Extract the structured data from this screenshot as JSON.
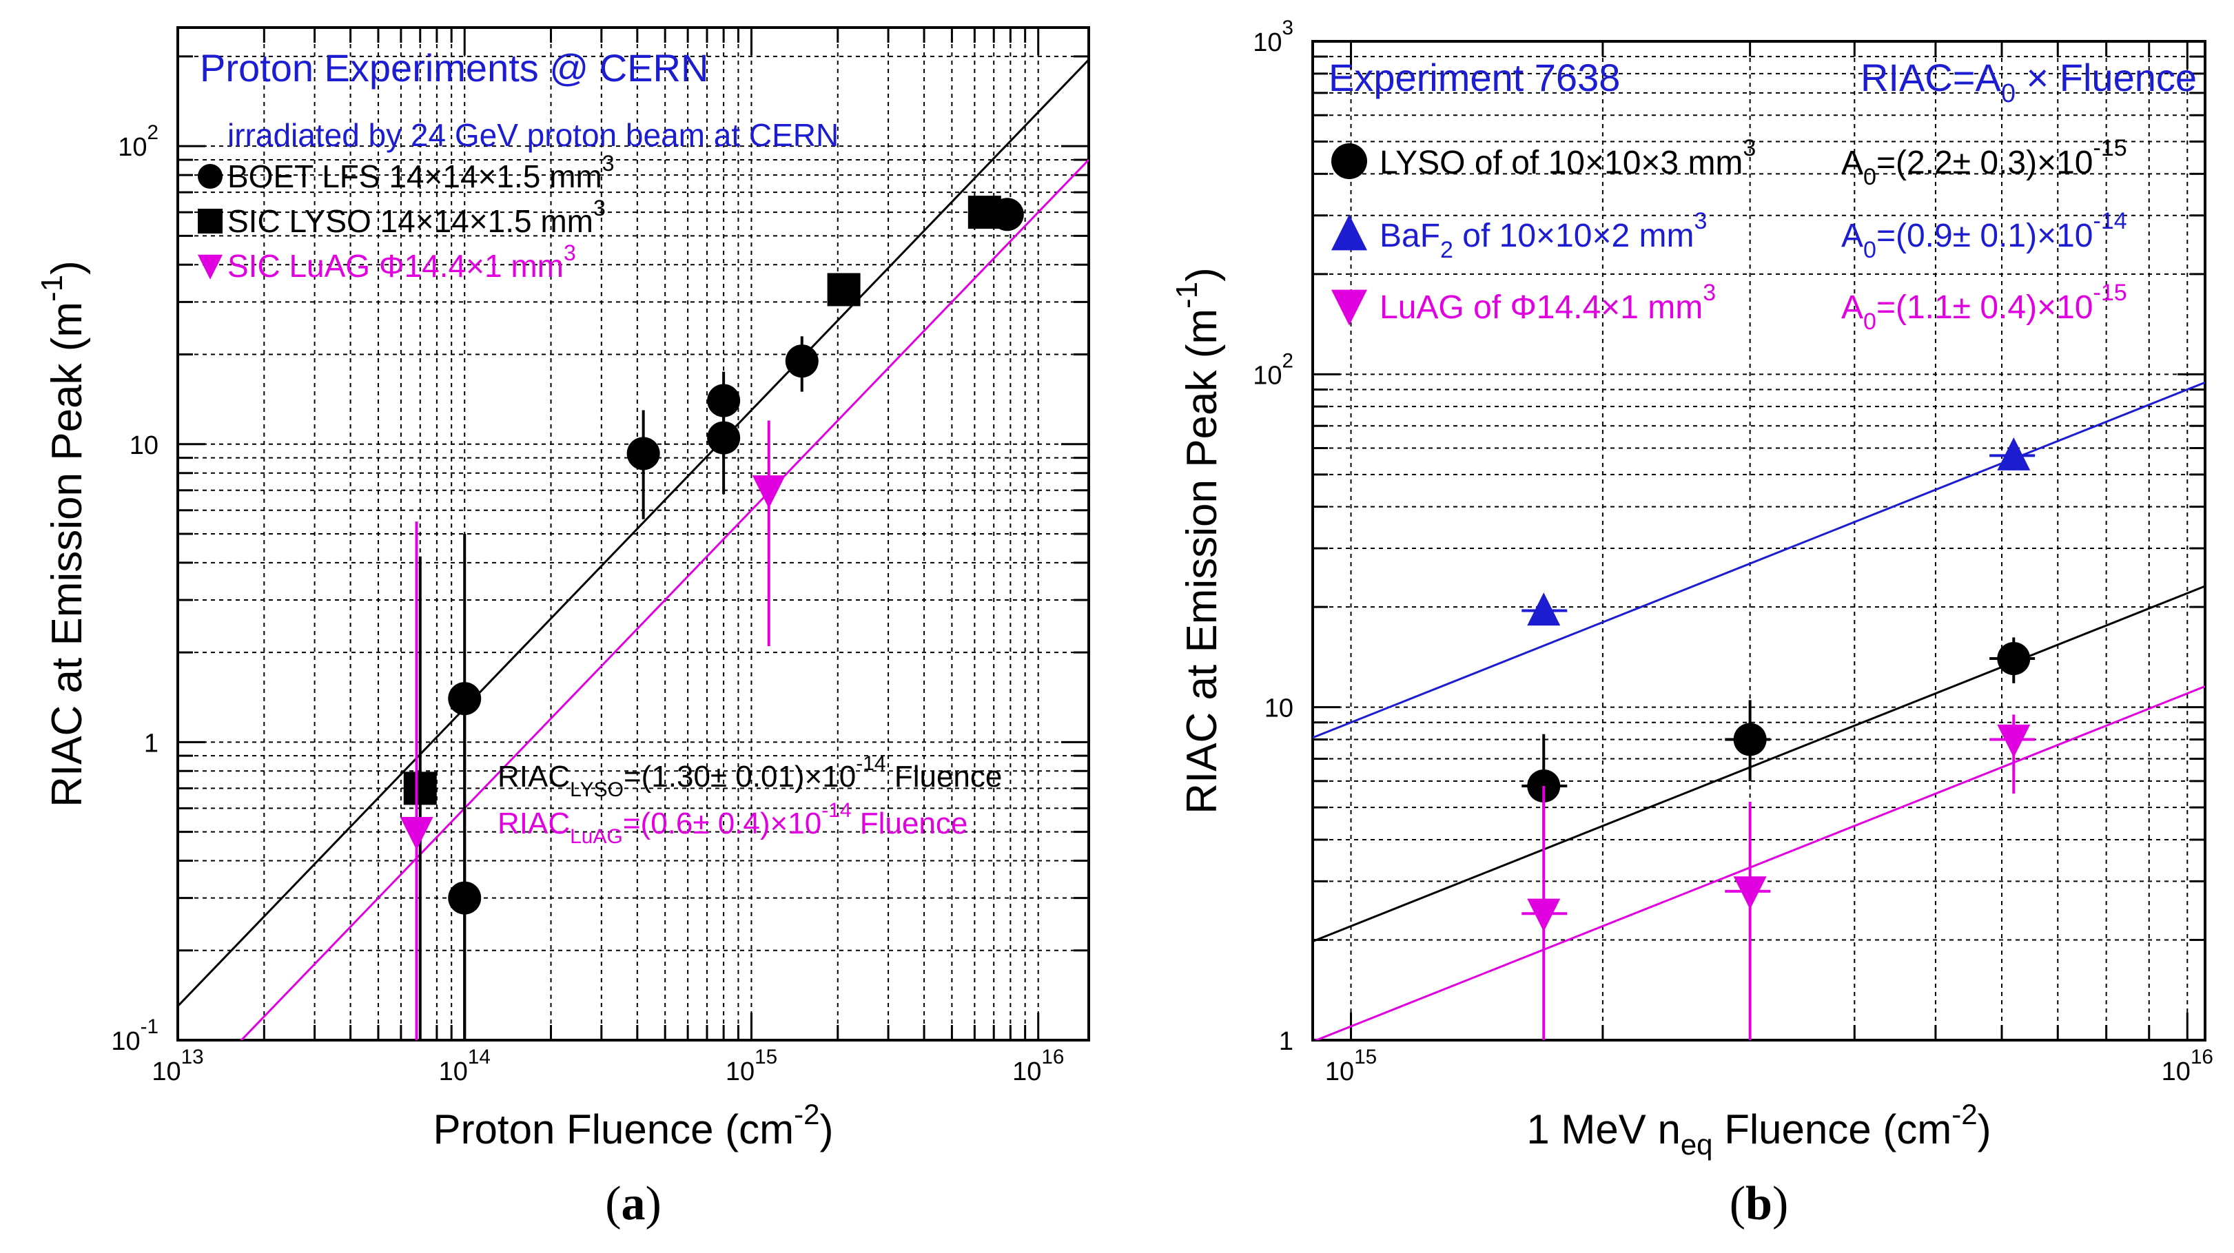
{
  "chart_data": [
    {
      "panel_id": "a",
      "panel_label": "a",
      "type": "scatter",
      "xscale": "log",
      "yscale": "log",
      "xlim": [
        10000000000000.0,
        1.5e+16
      ],
      "ylim": [
        0.1,
        250
      ],
      "xlabel": "Proton Fluence (cm",
      "xlabel_sup": "-2",
      "xlabel_close": ")",
      "ylabel": "RIAC at Emission Peak (m",
      "ylabel_sup": "-1",
      "ylabel_close": ")",
      "xticks": [
        {
          "value": 10000000000000.0,
          "base": "10",
          "exp": "13"
        },
        {
          "value": 100000000000000.0,
          "base": "10",
          "exp": "14"
        },
        {
          "value": 1000000000000000.0,
          "base": "10",
          "exp": "15"
        },
        {
          "value": 1e+16,
          "base": "10",
          "exp": "16"
        }
      ],
      "yticks": [
        {
          "value": 0.1,
          "base": "10",
          "exp": "-1"
        },
        {
          "value": 1,
          "base": "1",
          "exp": ""
        },
        {
          "value": 10,
          "base": "10",
          "exp": ""
        },
        {
          "value": 100,
          "base": "10",
          "exp": "2"
        }
      ],
      "header": {
        "title": "Proton Experiments @ CERN",
        "subtitle": "irradiated by 24 GeV proton beam at CERN"
      },
      "legend": [
        {
          "marker": "circle",
          "color": "#000000",
          "text": "BOET LFS  14×14×1.5 mm",
          "sup": "3"
        },
        {
          "marker": "square",
          "color": "#000000",
          "text": "SIC LYSO   14×14×1.5 mm",
          "sup": "3"
        },
        {
          "marker": "tri-down",
          "color": "#e000e0",
          "text": "SIC LuAG  Φ14.4×1 mm",
          "sup": "3"
        }
      ],
      "series": [
        {
          "name": "BOET LFS",
          "marker": "circle",
          "color": "#000000",
          "points": [
            {
              "x": 100000000000000.0,
              "y": 1.4,
              "ylo": 0.1,
              "yhi": 5.0
            },
            {
              "x": 100000000000000.0,
              "y": 0.3,
              "ylo": 0.1,
              "yhi": 1.4
            },
            {
              "x": 420000000000000.0,
              "y": 9.3,
              "ylo": 5.6,
              "yhi": 13.0
            },
            {
              "x": 800000000000000.0,
              "y": 14.0,
              "ylo": 9.0,
              "yhi": 17.5
            },
            {
              "x": 800000000000000.0,
              "y": 10.5,
              "ylo": 6.8,
              "yhi": 14.0
            },
            {
              "x": 1500000000000000.0,
              "y": 19.0,
              "ylo": 15.0,
              "yhi": 23.0
            },
            {
              "x": 7800000000000000.0,
              "y": 59.0,
              "ylo": 59.0,
              "yhi": 59.0
            }
          ]
        },
        {
          "name": "SIC LYSO",
          "marker": "square",
          "color": "#000000",
          "points": [
            {
              "x": 70000000000000.0,
              "y": 0.7,
              "ylo": 0.1,
              "yhi": 4.2
            },
            {
              "x": 2100000000000000.0,
              "y": 33.0,
              "ylo": 33.0,
              "yhi": 33.0
            },
            {
              "x": 6500000000000000.0,
              "y": 60.0,
              "ylo": 60.0,
              "yhi": 60.0
            }
          ]
        },
        {
          "name": "SIC LuAG",
          "marker": "tri-down",
          "color": "#e000e0",
          "points": [
            {
              "x": 68000000000000.0,
              "y": 0.5,
              "ylo": 0.1,
              "yhi": 5.5
            },
            {
              "x": 1150000000000000.0,
              "y": 7.0,
              "ylo": 2.1,
              "yhi": 12.0
            }
          ]
        }
      ],
      "fits": [
        {
          "name": "RIAC LYSO fit",
          "color": "#000000",
          "coef": 1.3e-14
        },
        {
          "name": "RIAC LuAG fit",
          "color": "#e000e0",
          "coef": 6e-15
        }
      ],
      "fit_labels": [
        {
          "color": "#000000",
          "pre": "RIAC",
          "sub": "LYSO",
          "mid": "=(1.30± 0.01)×10",
          "sup": "-14",
          "post": " Fluence"
        },
        {
          "color": "#e000e0",
          "pre": "RIAC",
          "sub": "LuAG",
          "mid": "=(0.6± 0.4)×10",
          "sup": "-14",
          "post": " Fluence"
        }
      ]
    },
    {
      "panel_id": "b",
      "panel_label": "b",
      "type": "scatter",
      "xscale": "log",
      "yscale": "log",
      "xlim": [
        900000000000000.0,
        1.05e+16
      ],
      "ylim": [
        1,
        1000
      ],
      "xlabel_pre": "1 MeV n",
      "xlabel_sub": "eq",
      "xlabel": " Fluence (cm",
      "xlabel_sup": "-2",
      "xlabel_close": ")",
      "ylabel": "RIAC at Emission Peak (m",
      "ylabel_sup": "-1",
      "ylabel_close": ")",
      "xticks": [
        {
          "value": 1000000000000000.0,
          "base": "10",
          "exp": "15"
        },
        {
          "value": 1e+16,
          "base": "10",
          "exp": "16"
        }
      ],
      "yticks": [
        {
          "value": 1,
          "base": "1",
          "exp": ""
        },
        {
          "value": 10,
          "base": "10",
          "exp": ""
        },
        {
          "value": 100,
          "base": "10",
          "exp": "2"
        },
        {
          "value": 1000,
          "base": "10",
          "exp": "3"
        }
      ],
      "header": {
        "title": "Experiment 7638",
        "formula_pre": "RIAC=A",
        "formula_sub": "0",
        "formula_post": " × Fluence"
      },
      "legend": [
        {
          "marker": "circle",
          "color": "#000000",
          "text": "LYSO of of 10×10×3 mm",
          "sup": "3",
          "a0_pre": "A",
          "a0_sub": "0",
          "a0_mid": "=(2.2± 0.3)×10",
          "a0_sup": "-15"
        },
        {
          "marker": "tri-up",
          "color": "#1c1cd0",
          "text": "BaF",
          "text_sub": "2",
          "text2": " of 10×10×2 mm",
          "sup": "3",
          "a0_pre": "A",
          "a0_sub": "0",
          "a0_mid": "=(0.9± 0.1)×10",
          "a0_sup": "-14"
        },
        {
          "marker": "tri-down",
          "color": "#e000e0",
          "text": "LuAG of Φ14.4×1 mm",
          "sup": "3",
          "a0_pre": "A",
          "a0_sub": "0",
          "a0_mid": "=(1.1± 0.4)×10",
          "a0_sup": "-15"
        }
      ],
      "series": [
        {
          "name": "LYSO",
          "marker": "circle",
          "color": "#000000",
          "points": [
            {
              "x": 1700000000000000.0,
              "y": 5.8,
              "ylo": 4.0,
              "yhi": 8.3,
              "xlo": 1600000000000000.0,
              "xhi": 1820000000000000.0
            },
            {
              "x": 3000000000000000.0,
              "y": 8.0,
              "ylo": 6.0,
              "yhi": 10.5,
              "xlo": 2800000000000000.0,
              "xhi": 3200000000000000.0
            },
            {
              "x": 6200000000000000.0,
              "y": 14.0,
              "ylo": 11.8,
              "yhi": 16.2,
              "xlo": 5800000000000000.0,
              "xhi": 6600000000000000.0
            }
          ]
        },
        {
          "name": "BaF2",
          "marker": "tri-up",
          "color": "#1c1cd0",
          "points": [
            {
              "x": 1700000000000000.0,
              "y": 19.5,
              "ylo": 19.5,
              "yhi": 19.5,
              "xlo": 1600000000000000.0,
              "xhi": 1820000000000000.0
            },
            {
              "x": 6200000000000000.0,
              "y": 57.0,
              "ylo": 57.0,
              "yhi": 57.0,
              "xlo": 5800000000000000.0,
              "xhi": 6600000000000000.0
            }
          ]
        },
        {
          "name": "LuAG",
          "marker": "tri-down",
          "color": "#e000e0",
          "points": [
            {
              "x": 1700000000000000.0,
              "y": 2.4,
              "ylo": 1.0,
              "yhi": 5.8,
              "xlo": 1600000000000000.0,
              "xhi": 1820000000000000.0
            },
            {
              "x": 3000000000000000.0,
              "y": 2.8,
              "ylo": 1.0,
              "yhi": 5.2,
              "xlo": 2800000000000000.0,
              "xhi": 3200000000000000.0
            },
            {
              "x": 6200000000000000.0,
              "y": 8.0,
              "ylo": 5.5,
              "yhi": 9.5,
              "xlo": 5800000000000000.0,
              "xhi": 6600000000000000.0
            }
          ]
        }
      ],
      "fits": [
        {
          "name": "LYSO fit",
          "color": "#000000",
          "coef": 2.2e-15
        },
        {
          "name": "BaF2 fit",
          "color": "#1c1cd0",
          "coef": 9e-15
        },
        {
          "name": "LuAG fit",
          "color": "#e000e0",
          "coef": 1.1e-15
        }
      ]
    }
  ]
}
